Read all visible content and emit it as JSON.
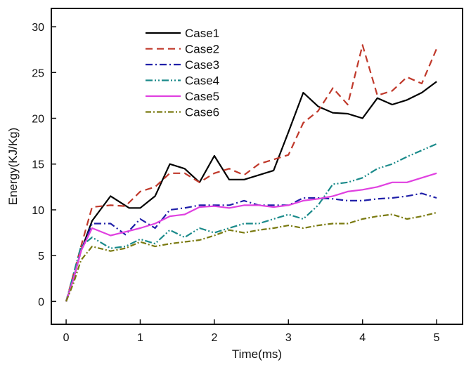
{
  "chart_data": {
    "type": "line",
    "xlabel": "Time(ms)",
    "ylabel": "Energy(KJ/Kg)",
    "xlim": [
      -0.2,
      5.35
    ],
    "ylim": [
      -2.5,
      32.0
    ],
    "xticks": [
      0,
      1,
      2,
      3,
      4,
      5
    ],
    "yticks": [
      0,
      5,
      10,
      15,
      20,
      25,
      30
    ],
    "legend_position": "top-left",
    "grid": false,
    "series": [
      {
        "name": "Case1",
        "color": "#000000",
        "dash": "solid",
        "x": [
          0,
          0.1,
          0.2,
          0.35,
          0.6,
          0.85,
          1.0,
          1.2,
          1.4,
          1.6,
          1.8,
          2.0,
          2.2,
          2.4,
          2.6,
          2.8,
          3.0,
          3.2,
          3.4,
          3.6,
          3.8,
          4.0,
          4.2,
          4.4,
          4.6,
          4.8,
          5.0
        ],
        "y": [
          0,
          2.5,
          5.5,
          8.8,
          11.5,
          10.2,
          10.2,
          11.5,
          15.0,
          14.5,
          13.0,
          15.9,
          13.3,
          13.3,
          13.8,
          14.3,
          18.5,
          22.8,
          21.3,
          20.6,
          20.5,
          20.0,
          22.2,
          21.5,
          22.0,
          22.8,
          24.0
        ]
      },
      {
        "name": "Case2",
        "color": "#c0392b",
        "dash": "10,6",
        "x": [
          0,
          0.1,
          0.2,
          0.35,
          0.6,
          0.8,
          1.0,
          1.2,
          1.4,
          1.6,
          1.8,
          2.0,
          2.2,
          2.4,
          2.6,
          2.8,
          3.0,
          3.2,
          3.4,
          3.6,
          3.8,
          4.0,
          4.2,
          4.4,
          4.6,
          4.8,
          5.0
        ],
        "y": [
          0,
          3.0,
          6.0,
          10.3,
          10.5,
          10.4,
          12.0,
          12.5,
          14.0,
          14.0,
          13.0,
          14.0,
          14.5,
          13.8,
          15.0,
          15.5,
          16.0,
          19.5,
          20.8,
          23.3,
          21.5,
          28.0,
          22.5,
          23.0,
          24.5,
          23.8,
          27.6
        ]
      },
      {
        "name": "Case3",
        "color": "#1f1fa8",
        "dash": "10,4,2,4",
        "x": [
          0,
          0.1,
          0.2,
          0.35,
          0.6,
          0.8,
          1.0,
          1.2,
          1.4,
          1.6,
          1.8,
          2.0,
          2.2,
          2.4,
          2.6,
          2.8,
          3.0,
          3.2,
          3.4,
          3.6,
          3.8,
          4.0,
          4.2,
          4.4,
          4.6,
          4.8,
          5.0
        ],
        "y": [
          0,
          2.5,
          5.5,
          8.5,
          8.5,
          7.3,
          9.0,
          8.0,
          10.0,
          10.2,
          10.5,
          10.5,
          10.5,
          11.0,
          10.5,
          10.5,
          10.5,
          11.3,
          11.3,
          11.2,
          11.0,
          11.0,
          11.2,
          11.3,
          11.5,
          11.8,
          11.3
        ]
      },
      {
        "name": "Case4",
        "color": "#1a8a8a",
        "dash": "10,3,2,3,2,3",
        "x": [
          0,
          0.1,
          0.2,
          0.35,
          0.6,
          0.8,
          1.0,
          1.2,
          1.4,
          1.6,
          1.8,
          2.0,
          2.2,
          2.4,
          2.6,
          2.8,
          3.0,
          3.2,
          3.4,
          3.6,
          3.8,
          4.0,
          4.2,
          4.4,
          4.6,
          4.8,
          5.0
        ],
        "y": [
          0,
          3.0,
          6.0,
          7.0,
          5.8,
          6.0,
          6.8,
          6.3,
          7.8,
          7.0,
          8.0,
          7.5,
          8.0,
          8.5,
          8.5,
          9.0,
          9.5,
          9.0,
          10.5,
          12.8,
          13.0,
          13.5,
          14.5,
          15.0,
          15.8,
          16.5,
          17.2
        ]
      },
      {
        "name": "Case5",
        "color": "#e040e0",
        "dash": "solid",
        "x": [
          0,
          0.1,
          0.2,
          0.35,
          0.6,
          0.8,
          1.0,
          1.2,
          1.4,
          1.6,
          1.8,
          2.0,
          2.2,
          2.4,
          2.6,
          2.8,
          3.0,
          3.2,
          3.4,
          3.6,
          3.8,
          4.0,
          4.2,
          4.4,
          4.6,
          4.8,
          5.0
        ],
        "y": [
          0,
          2.5,
          5.5,
          8.0,
          7.2,
          7.6,
          8.0,
          8.5,
          9.3,
          9.5,
          10.3,
          10.4,
          10.2,
          10.5,
          10.5,
          10.3,
          10.5,
          11.0,
          11.2,
          11.5,
          12.0,
          12.2,
          12.5,
          13.0,
          13.0,
          13.5,
          14.0
        ]
      },
      {
        "name": "Case6",
        "color": "#7a7a10",
        "dash": "8,3,2,3",
        "x": [
          0,
          0.1,
          0.2,
          0.35,
          0.6,
          0.8,
          1.0,
          1.2,
          1.4,
          1.6,
          1.8,
          2.0,
          2.2,
          2.4,
          2.6,
          2.8,
          3.0,
          3.2,
          3.4,
          3.6,
          3.8,
          4.0,
          4.2,
          4.4,
          4.6,
          4.8,
          5.0
        ],
        "y": [
          0,
          2.0,
          4.5,
          6.0,
          5.5,
          5.8,
          6.5,
          6.0,
          6.3,
          6.5,
          6.7,
          7.2,
          7.8,
          7.5,
          7.8,
          8.0,
          8.3,
          8.0,
          8.3,
          8.5,
          8.5,
          9.0,
          9.3,
          9.5,
          9.0,
          9.3,
          9.7
        ]
      }
    ]
  }
}
